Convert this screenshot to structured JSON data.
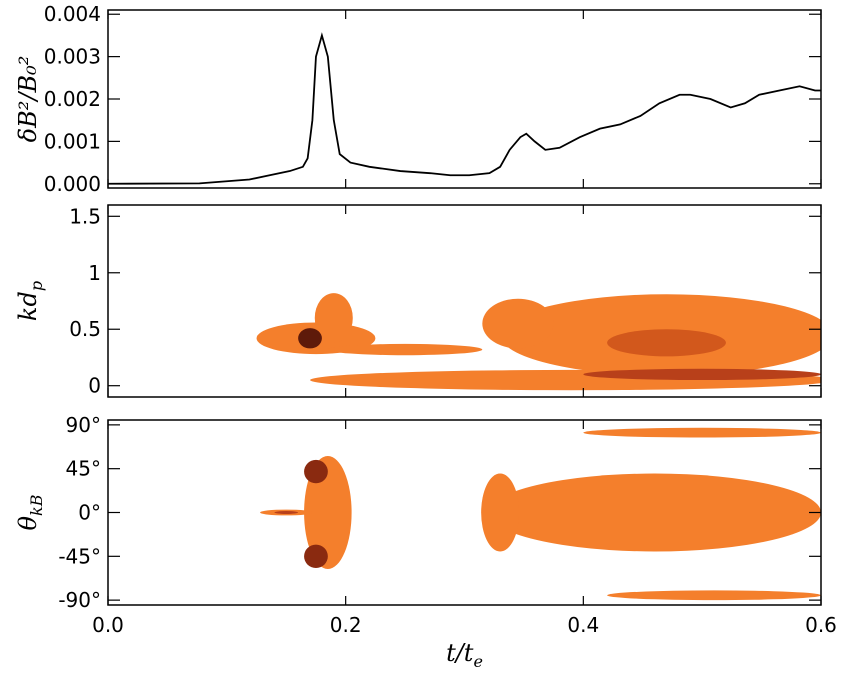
{
  "chart_data": [
    {
      "type": "line",
      "ylabel": "δB²/B₀²",
      "color": "#000000",
      "x": [
        0.0,
        0.077,
        0.119,
        0.136,
        0.153,
        0.164,
        0.168,
        0.172,
        0.175,
        0.18,
        0.185,
        0.19,
        0.195,
        0.204,
        0.22,
        0.246,
        0.271,
        0.288,
        0.304,
        0.321,
        0.33,
        0.338,
        0.347,
        0.352,
        0.359,
        0.368,
        0.38,
        0.397,
        0.414,
        0.431,
        0.448,
        0.464,
        0.481,
        0.49,
        0.507,
        0.524,
        0.536,
        0.548,
        0.565,
        0.582,
        0.595,
        0.6
      ],
      "values": [
        0,
        1e-05,
        0.0001,
        0.0002,
        0.0003,
        0.0004,
        0.0006,
        0.0015,
        0.003,
        0.0035,
        0.003,
        0.0015,
        0.0007,
        0.0005,
        0.0004,
        0.0003,
        0.00025,
        0.0002,
        0.0002,
        0.00025,
        0.0004,
        0.0008,
        0.0011,
        0.00118,
        0.001,
        0.0008,
        0.00085,
        0.0011,
        0.0013,
        0.0014,
        0.0016,
        0.0019,
        0.0021,
        0.0021,
        0.002,
        0.0018,
        0.0019,
        0.0021,
        0.0022,
        0.0023,
        0.0022,
        0.0022
      ],
      "xlim": [
        0,
        0.6
      ],
      "xticks": [
        0,
        0.2,
        0.4,
        0.6
      ],
      "xtick_labels": false,
      "ylim": [
        -0.0001,
        0.0041
      ],
      "yticks": [
        {
          "value": 0,
          "label": "0.000"
        },
        {
          "value": 0.001,
          "label": "0.001"
        },
        {
          "value": 0.002,
          "label": "0.002"
        },
        {
          "value": 0.003,
          "label": "0.003"
        },
        {
          "value": 0.004,
          "label": "0.004"
        }
      ]
    },
    {
      "type": "contour",
      "ylabel": {
        "main": "kd",
        "sub": "p"
      },
      "xlim": [
        0,
        0.6
      ],
      "xticks": [
        0,
        0.2,
        0.4,
        0.6
      ],
      "xtick_labels": false,
      "ylim": [
        -0.1,
        1.6
      ],
      "yticks": [
        0,
        0.5,
        1,
        1.5
      ],
      "blobs": [
        {
          "x": 0.39,
          "y": 0.05,
          "rx": 0.22,
          "ry": 0.09,
          "color": "#f47f2c"
        },
        {
          "x": 0.47,
          "y": 0.45,
          "rx": 0.14,
          "ry": 0.36,
          "color": "#f47f2c"
        },
        {
          "x": 0.345,
          "y": 0.55,
          "rx": 0.03,
          "ry": 0.22,
          "color": "#f47f2c"
        },
        {
          "x": 0.175,
          "y": 0.42,
          "rx": 0.05,
          "ry": 0.14,
          "color": "#f47f2c"
        },
        {
          "x": 0.19,
          "y": 0.6,
          "rx": 0.016,
          "ry": 0.22,
          "color": "#f47f2c"
        },
        {
          "x": 0.25,
          "y": 0.32,
          "rx": 0.065,
          "ry": 0.05,
          "color": "#f47f2c"
        },
        {
          "x": 0.47,
          "y": 0.38,
          "rx": 0.05,
          "ry": 0.12,
          "color": "#d2581c"
        },
        {
          "x": 0.5,
          "y": 0.1,
          "rx": 0.1,
          "ry": 0.05,
          "color": "#b8401a"
        },
        {
          "x": 0.17,
          "y": 0.42,
          "rx": 0.01,
          "ry": 0.09,
          "color": "#5e1a0a"
        }
      ]
    },
    {
      "type": "contour",
      "ylabel": {
        "main": "θ",
        "sub": "kB"
      },
      "xlabel": {
        "main": "t/t",
        "sub": "e"
      },
      "xlim": [
        0,
        0.6
      ],
      "xticks": [
        {
          "value": 0,
          "label": "0.0"
        },
        {
          "value": 0.2,
          "label": "0.2"
        },
        {
          "value": 0.4,
          "label": "0.4"
        },
        {
          "value": 0.6,
          "label": "0.6"
        }
      ],
      "xtick_labels": true,
      "ylim": [
        -95,
        95
      ],
      "yticks": [
        {
          "value": -90,
          "label": "-90°"
        },
        {
          "value": -45,
          "label": "-45°"
        },
        {
          "value": 0,
          "label": "0°"
        },
        {
          "value": 45,
          "label": "45°"
        },
        {
          "value": 90,
          "label": "90°"
        }
      ],
      "blobs": [
        {
          "x": 0.46,
          "y": 0,
          "rx": 0.14,
          "ry": 40,
          "color": "#f47f2c"
        },
        {
          "x": 0.33,
          "y": 0,
          "rx": 0.016,
          "ry": 40,
          "color": "#f47f2c"
        },
        {
          "x": 0.185,
          "y": 0,
          "rx": 0.02,
          "ry": 58,
          "color": "#f47f2c"
        },
        {
          "x": 0.15,
          "y": 0,
          "rx": 0.022,
          "ry": 3,
          "color": "#f47f2c"
        },
        {
          "x": 0.5,
          "y": 82,
          "rx": 0.1,
          "ry": 5,
          "color": "#f47f2c"
        },
        {
          "x": 0.51,
          "y": -85,
          "rx": 0.09,
          "ry": 5,
          "color": "#f47f2c"
        },
        {
          "x": 0.15,
          "y": 0,
          "rx": 0.01,
          "ry": 1.5,
          "color": "#b8401a"
        },
        {
          "x": 0.175,
          "y": 42,
          "rx": 0.01,
          "ry": 12,
          "color": "#8a2a10"
        },
        {
          "x": 0.175,
          "y": -45,
          "rx": 0.01,
          "ry": 12,
          "color": "#8a2a10"
        }
      ]
    }
  ]
}
